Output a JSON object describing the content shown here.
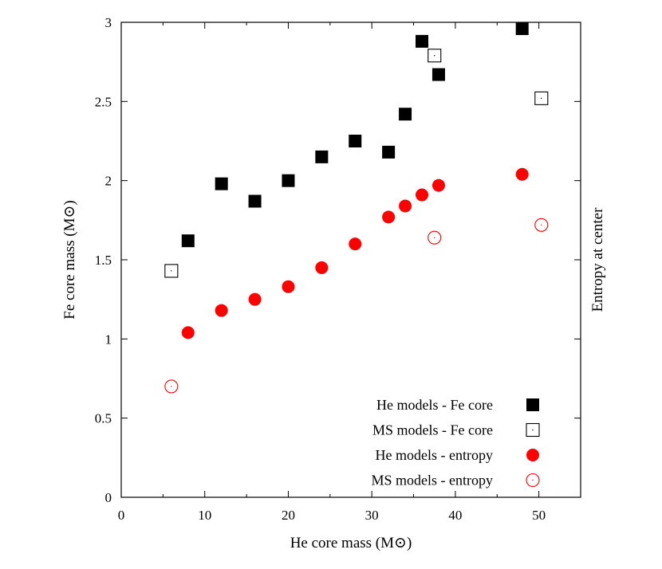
{
  "chart_data": {
    "type": "scatter",
    "xlabel": "He core mass (M⊙)",
    "ylabel": "Fe core mass (M⊙)",
    "y2label": "Entropy at center",
    "xlim": [
      0,
      55
    ],
    "ylim": [
      0,
      3
    ],
    "xticks": [
      "0",
      "10",
      "20",
      "30",
      "40",
      "50"
    ],
    "yticks": [
      "0",
      "0.5",
      "1",
      "1.5",
      "2",
      "2.5",
      "3"
    ],
    "legend_position": "bottom-right",
    "grid": false,
    "series": [
      {
        "name": "He models - Fe core",
        "marker": "filled-square",
        "color": "#000000",
        "x": [
          8,
          12,
          16,
          20,
          24,
          28,
          32,
          34,
          36,
          38,
          48
        ],
        "y": [
          1.62,
          1.98,
          1.87,
          2.0,
          2.15,
          2.25,
          2.18,
          2.42,
          2.88,
          2.67,
          2.96
        ]
      },
      {
        "name": "MS models - Fe core",
        "marker": "open-square",
        "color": "#000000",
        "x": [
          6,
          37.5,
          50.3
        ],
        "y": [
          1.43,
          2.79,
          2.52
        ]
      },
      {
        "name": "He models - entropy",
        "marker": "filled-circle",
        "color": "#ff0000",
        "x": [
          8,
          12,
          16,
          20,
          24,
          28,
          32,
          34,
          36,
          38,
          48
        ],
        "y": [
          1.04,
          1.18,
          1.25,
          1.33,
          1.45,
          1.6,
          1.77,
          1.84,
          1.91,
          1.97,
          2.04
        ]
      },
      {
        "name": "MS models - entropy",
        "marker": "open-circle",
        "color": "#ff0000",
        "x": [
          6,
          37.5,
          50.3
        ],
        "y": [
          0.7,
          1.64,
          1.72
        ]
      }
    ]
  }
}
